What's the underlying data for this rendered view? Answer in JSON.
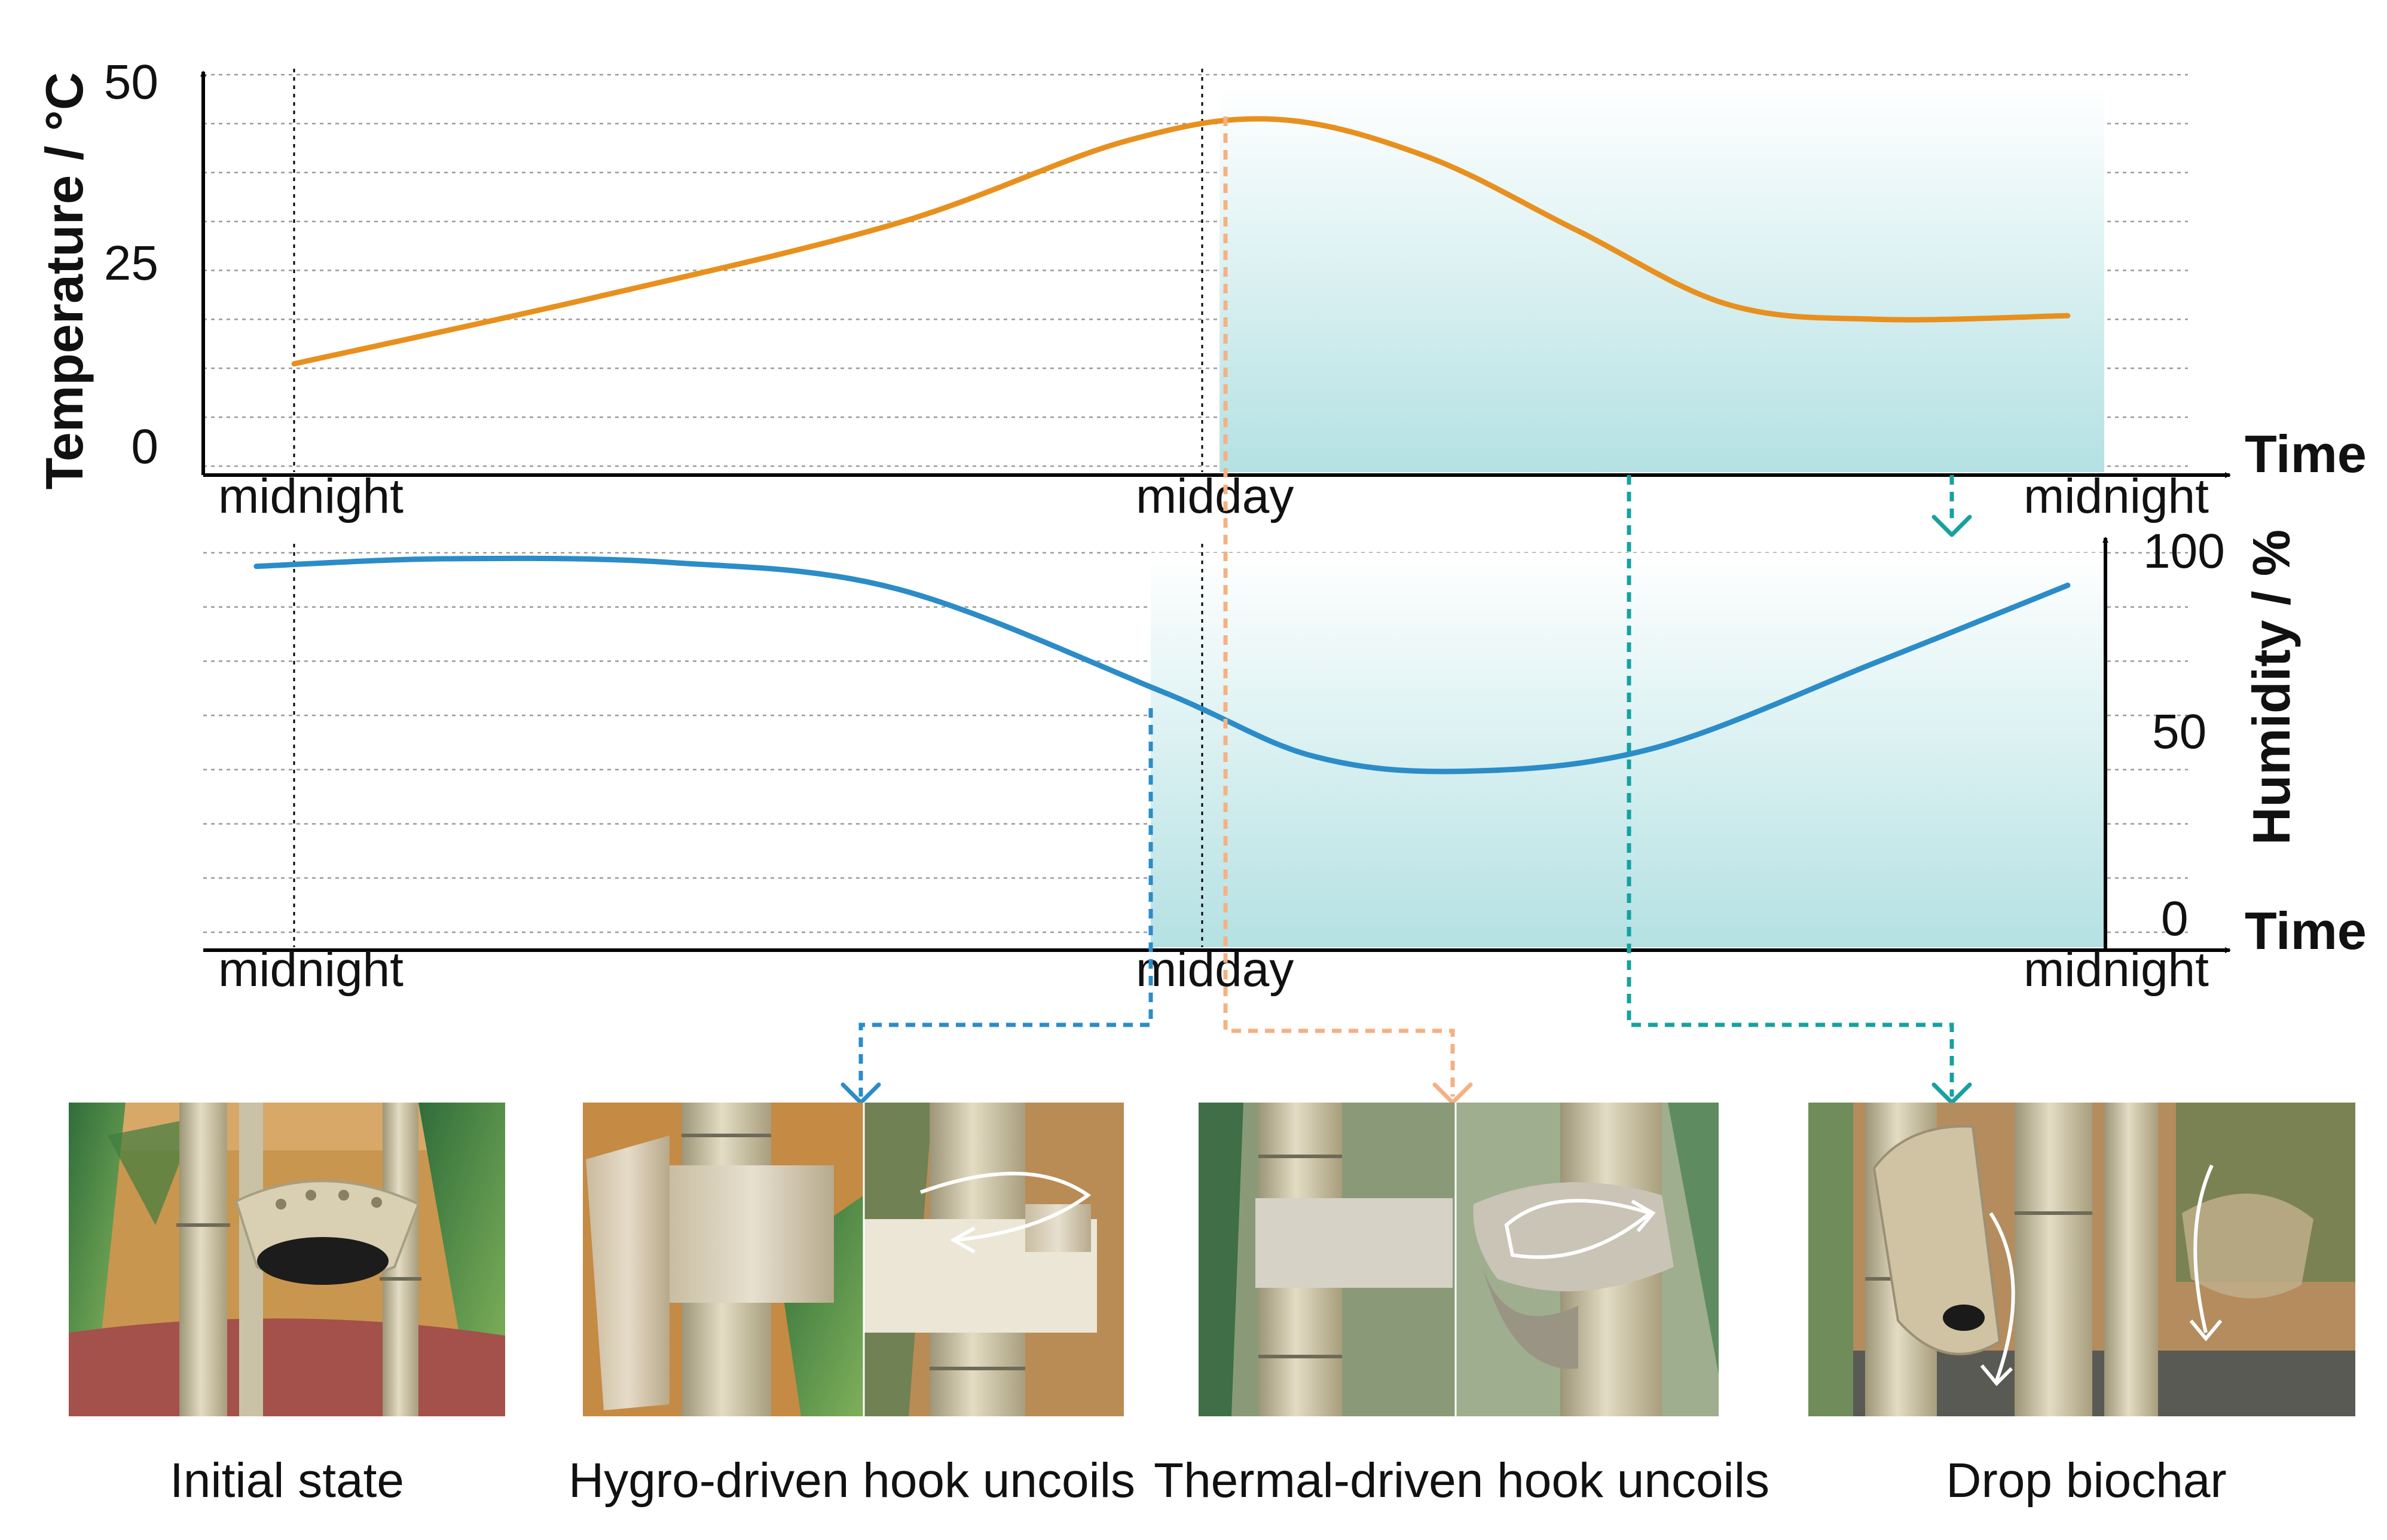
{
  "top_chart": {
    "y_axis_title": "Temperature / °C",
    "y_ticks": [
      "50",
      "25",
      "0"
    ],
    "x_axis_title": "Time",
    "x_ticks": [
      "midnight",
      "midday",
      "midnight"
    ]
  },
  "bottom_chart": {
    "y_axis_title": "Humidity / %",
    "y_ticks": [
      "100",
      "50",
      "0"
    ],
    "x_axis_title": "Time",
    "x_ticks": [
      "midnight",
      "midday",
      "midnight"
    ]
  },
  "chart_data": [
    {
      "type": "line",
      "x_ticks": [
        "midnight",
        "midday",
        "midnight"
      ],
      "xlabel": "Time",
      "ylabel": "Temperature / °C",
      "ylim": [
        0,
        50
      ],
      "grid": true,
      "series": [
        {
          "color": "#E8901E",
          "points": [
            [
              0,
              13
            ],
            [
              4,
              22
            ],
            [
              8,
              32
            ],
            [
              11,
              43
            ],
            [
              13,
              46
            ],
            [
              15,
              41
            ],
            [
              17,
              31
            ],
            [
              19,
              21
            ],
            [
              21,
              19
            ],
            [
              23.5,
              19.5
            ]
          ]
        }
      ],
      "shaded_region": {
        "x_start": 12.2,
        "x_end": 24.4
      }
    },
    {
      "type": "line",
      "x_ticks": [
        "midnight",
        "midday",
        "midnight"
      ],
      "xlabel": "Time",
      "ylabel": "Humidity / %",
      "ylim": [
        0,
        100
      ],
      "grid": true,
      "series": [
        {
          "color": "#2B8CC8",
          "points": [
            [
              -0.5,
              98
            ],
            [
              2,
              100
            ],
            [
              5,
              99
            ],
            [
              8,
              92
            ],
            [
              11.5,
              65
            ],
            [
              13.5,
              48
            ],
            [
              15.5,
              44
            ],
            [
              18,
              50
            ],
            [
              21,
              73
            ],
            [
              23.5,
              93
            ]
          ]
        }
      ],
      "shaded_region": {
        "x_start": 11.4,
        "x_end": 24.4
      }
    }
  ],
  "colors": {
    "temperature": "#E8901E",
    "humidity": "#2B8CC8",
    "thermal_arrow": "#F4B183",
    "hygro_arrow": "#2B8CC8",
    "drop_arrow": "#17A1A1",
    "shade_bottom": "#B4E1E3"
  },
  "panels": [
    {
      "caption": "Initial state",
      "icon": "bamboo-planter-photo"
    },
    {
      "caption": "Hygro-driven hook uncoils",
      "icon": "hygro-hook-photo"
    },
    {
      "caption": "Thermal-driven hook uncoils",
      "icon": "thermal-hook-photo"
    },
    {
      "caption": "Drop biochar",
      "icon": "drop-biochar-photo"
    }
  ]
}
